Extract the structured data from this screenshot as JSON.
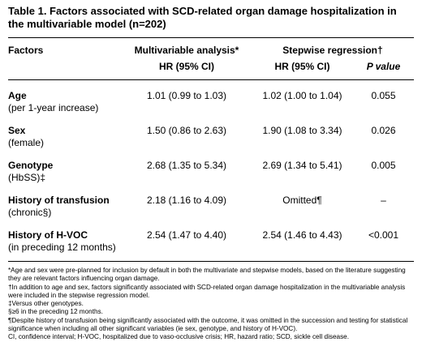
{
  "title": "Table 1. Factors associated with SCD-related organ damage hospitalization in the multivariable model (n=202)",
  "headers": {
    "factors": "Factors",
    "multivariable": "Multivariable analysis*",
    "stepwise": "Stepwise regression†",
    "hr1": "HR (95% CI)",
    "hr2": "HR (95% CI)",
    "pvalue": "P value"
  },
  "rows": [
    {
      "name": "Age",
      "sub": "(per 1-year increase)",
      "mv": "1.01 (0.99 to 1.03)",
      "sw": "1.02 (1.00 to 1.04)",
      "p": "0.055"
    },
    {
      "name": "Sex",
      "sub": "(female)",
      "mv": "1.50 (0.86 to 2.63)",
      "sw": "1.90 (1.08 to 3.34)",
      "p": "0.026"
    },
    {
      "name": "Genotype",
      "sub": "(HbSS)‡",
      "mv": "2.68 (1.35 to 5.34)",
      "sw": "2.69 (1.34 to 5.41)",
      "p": "0.005"
    },
    {
      "name": "History of transfusion",
      "sub": "(chronic§)",
      "mv": "2.18 (1.16 to 4.09)",
      "sw": "Omitted¶",
      "p": "–"
    },
    {
      "name": "History of H-VOC",
      "sub": "(in preceding 12 months)",
      "mv": "2.54 (1.47 to 4.40)",
      "sw": "2.54 (1.46 to 4.43)",
      "p": "<0.001"
    }
  ],
  "footnotes": [
    "*Age and sex were pre-planned for inclusion by default in both the multivariate and stepwise models, based on the literature suggesting they are relevant factors influencing organ damage.",
    "†In addition to age and sex, factors significantly associated with SCD-related organ damage hospitalization in the multivariable analysis were included in the stepwise regression model.",
    "‡Versus other genotypes.",
    "§≥6 in the preceding 12 months.",
    "¶Despite history of transfusion being significantly associated with the outcome, it was omitted in the succession and testing for statistical significance when including all other significant variables (ie sex, genotype, and history of H-VOC).",
    "CI, confidence interval; H-VOC, hospitalized due to vaso-occlusive crisis; HR, hazard ratio; SCD, sickle cell disease."
  ]
}
